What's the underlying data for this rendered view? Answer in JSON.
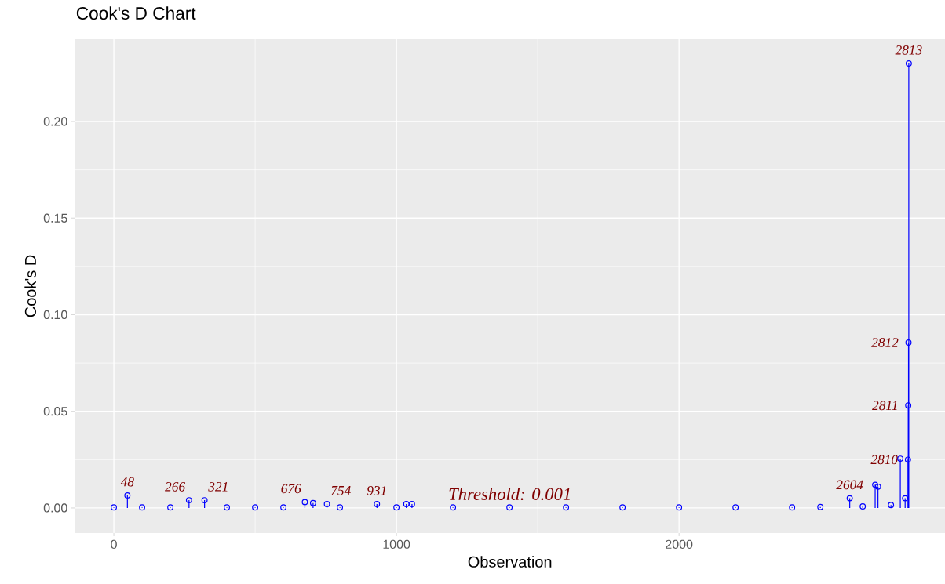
{
  "chart_data": {
    "type": "lollipop",
    "title": "Cook's D Chart",
    "xlabel": "Observation",
    "ylabel": "Cook's D",
    "x": [
      0,
      48,
      100,
      200,
      266,
      321,
      400,
      500,
      600,
      676,
      705,
      754,
      800,
      931,
      1000,
      1035,
      1055,
      1200,
      1400,
      1600,
      1800,
      2000,
      2200,
      2400,
      2500,
      2604,
      2650,
      2694,
      2704,
      2750,
      2783,
      2800,
      2810,
      2811,
      2812,
      2813
    ],
    "values": [
      0.0003,
      0.0065,
      0.0003,
      0.0003,
      0.004,
      0.004,
      0.0003,
      0.0003,
      0.0003,
      0.003,
      0.0025,
      0.002,
      0.0003,
      0.002,
      0.0003,
      0.002,
      0.002,
      0.0003,
      0.0003,
      0.0003,
      0.0003,
      0.0003,
      0.0003,
      0.0003,
      0.0005,
      0.005,
      0.0008,
      0.012,
      0.011,
      0.0015,
      0.0255,
      0.005,
      0.025,
      0.053,
      0.0856,
      0.23
    ],
    "color": "#0000ff",
    "marker": "circle",
    "grid": true,
    "xlim": [
      -139,
      2942
    ],
    "ylim": [
      -0.013,
      0.2426
    ],
    "xticks": [
      0,
      1000,
      2000
    ],
    "yticks": [
      {
        "value": 0,
        "label": "0.00"
      },
      {
        "value": 0.05,
        "label": "0.05"
      },
      {
        "value": 0.1,
        "label": "0.10"
      },
      {
        "value": 0.15,
        "label": "0.15"
      },
      {
        "value": 0.2,
        "label": "0.20"
      }
    ],
    "ref_lines": [
      {
        "axis": "y",
        "value": 0.001,
        "label": "Threshold: 0.001",
        "color": "#ff0000"
      }
    ],
    "annotations": [
      {
        "text": "48",
        "x": 48,
        "y": 0.0065
      },
      {
        "text": "266",
        "x": 266,
        "y": 0.004
      },
      {
        "text": "321",
        "x": 321,
        "y": 0.004
      },
      {
        "text": "676",
        "x": 676,
        "y": 0.003
      },
      {
        "text": "754",
        "x": 754,
        "y": 0.002
      },
      {
        "text": "931",
        "x": 931,
        "y": 0.002
      },
      {
        "text": "2604",
        "x": 2604,
        "y": 0.005
      },
      {
        "text": "2810",
        "x": 2810,
        "y": 0.025
      },
      {
        "text": "2811",
        "x": 2811,
        "y": 0.053
      },
      {
        "text": "2812",
        "x": 2812,
        "y": 0.0856
      },
      {
        "text": "2813",
        "x": 2813,
        "y": 0.23
      }
    ]
  }
}
